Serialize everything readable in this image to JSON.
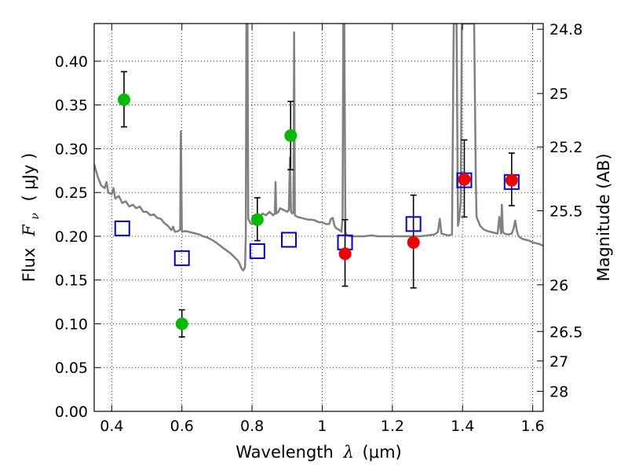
{
  "chart_data": {
    "type": "scatter",
    "xlabel": {
      "prefix": "Wavelength",
      "symbol": "λ",
      "unit": "(μm)"
    },
    "ylabel": {
      "prefix": "Flux",
      "symbol": "F",
      "sub": "ν",
      "unit": "( μJy )"
    },
    "ylabel_right": "Magnitude (AB)",
    "xlim": [
      0.35,
      1.63
    ],
    "ylim": [
      0.0,
      0.443
    ],
    "grid": true,
    "grid_style": "dotted",
    "xticks": [
      0.4,
      0.6,
      0.8,
      1.0,
      1.2,
      1.4,
      1.6
    ],
    "xtick_labels": [
      "0.4",
      "0.6",
      "0.8",
      "1",
      "1.2",
      "1.4",
      "1.6"
    ],
    "yticks": [
      0.0,
      0.05,
      0.1,
      0.15,
      0.2,
      0.25,
      0.3,
      0.35,
      0.4
    ],
    "ytick_labels": [
      "0.00",
      "0.05",
      "0.10",
      "0.15",
      "0.20",
      "0.25",
      "0.30",
      "0.35",
      "0.40"
    ],
    "right_ticks": [
      {
        "label": "24.8",
        "mag": 24.8
      },
      {
        "label": "25",
        "mag": 25.0
      },
      {
        "label": "25.2",
        "mag": 25.2
      },
      {
        "label": "25.5",
        "mag": 25.5
      },
      {
        "label": "26",
        "mag": 26.0
      },
      {
        "label": "26.5",
        "mag": 26.5
      },
      {
        "label": "27",
        "mag": 27.0
      },
      {
        "label": "28",
        "mag": 28.0
      }
    ],
    "series": [
      {
        "kind": "line",
        "color": "#808080",
        "points": [
          [
            0.35,
            0.282
          ],
          [
            0.36,
            0.268
          ],
          [
            0.37,
            0.258
          ],
          [
            0.38,
            0.255
          ],
          [
            0.385,
            0.262
          ],
          [
            0.39,
            0.25
          ],
          [
            0.4,
            0.248
          ],
          [
            0.405,
            0.255
          ],
          [
            0.41,
            0.243
          ],
          [
            0.42,
            0.246
          ],
          [
            0.43,
            0.238
          ],
          [
            0.44,
            0.24
          ],
          [
            0.45,
            0.234
          ],
          [
            0.46,
            0.236
          ],
          [
            0.47,
            0.232
          ],
          [
            0.48,
            0.234
          ],
          [
            0.49,
            0.228
          ],
          [
            0.5,
            0.228
          ],
          [
            0.51,
            0.224
          ],
          [
            0.52,
            0.225
          ],
          [
            0.53,
            0.221
          ],
          [
            0.54,
            0.22
          ],
          [
            0.55,
            0.215
          ],
          [
            0.56,
            0.212
          ],
          [
            0.57,
            0.207
          ],
          [
            0.575,
            0.211
          ],
          [
            0.58,
            0.205
          ],
          [
            0.59,
            0.206
          ],
          [
            0.595,
            0.208
          ],
          [
            0.597,
            0.32
          ],
          [
            0.6,
            0.205
          ],
          [
            0.61,
            0.206
          ],
          [
            0.62,
            0.205
          ],
          [
            0.63,
            0.204
          ],
          [
            0.64,
            0.203
          ],
          [
            0.65,
            0.202
          ],
          [
            0.66,
            0.2
          ],
          [
            0.67,
            0.199
          ],
          [
            0.68,
            0.197
          ],
          [
            0.69,
            0.195
          ],
          [
            0.7,
            0.192
          ],
          [
            0.71,
            0.189
          ],
          [
            0.72,
            0.186
          ],
          [
            0.73,
            0.183
          ],
          [
            0.74,
            0.18
          ],
          [
            0.75,
            0.176
          ],
          [
            0.76,
            0.172
          ],
          [
            0.765,
            0.168
          ],
          [
            0.77,
            0.163
          ],
          [
            0.775,
            0.161
          ],
          [
            0.78,
            0.165
          ],
          [
            0.782,
            0.2
          ],
          [
            0.784,
            0.443
          ],
          [
            0.787,
            0.443
          ],
          [
            0.789,
            0.22
          ],
          [
            0.795,
            0.215
          ],
          [
            0.8,
            0.214
          ],
          [
            0.81,
            0.218
          ],
          [
            0.82,
            0.222
          ],
          [
            0.83,
            0.226
          ],
          [
            0.84,
            0.224
          ],
          [
            0.85,
            0.228
          ],
          [
            0.86,
            0.224
          ],
          [
            0.865,
            0.226
          ],
          [
            0.867,
            0.262
          ],
          [
            0.869,
            0.226
          ],
          [
            0.875,
            0.228
          ],
          [
            0.88,
            0.232
          ],
          [
            0.89,
            0.23
          ],
          [
            0.9,
            0.228
          ],
          [
            0.905,
            0.23
          ],
          [
            0.908,
            0.29
          ],
          [
            0.911,
            0.228
          ],
          [
            0.915,
            0.226
          ],
          [
            0.918,
            0.228
          ],
          [
            0.92,
            0.433
          ],
          [
            0.922,
            0.224
          ],
          [
            0.93,
            0.222
          ],
          [
            0.94,
            0.221
          ],
          [
            0.95,
            0.22
          ],
          [
            0.96,
            0.219
          ],
          [
            0.97,
            0.219
          ],
          [
            0.98,
            0.218
          ],
          [
            0.99,
            0.216
          ],
          [
            1.0,
            0.216
          ],
          [
            1.01,
            0.214
          ],
          [
            1.02,
            0.214
          ],
          [
            1.025,
            0.22
          ],
          [
            1.03,
            0.221
          ],
          [
            1.035,
            0.212
          ],
          [
            1.04,
            0.209
          ],
          [
            1.05,
            0.207
          ],
          [
            1.055,
            0.205
          ],
          [
            1.058,
            0.222
          ],
          [
            1.06,
            0.443
          ],
          [
            1.063,
            0.443
          ],
          [
            1.066,
            0.205
          ],
          [
            1.07,
            0.201
          ],
          [
            1.08,
            0.2
          ],
          [
            1.1,
            0.2
          ],
          [
            1.12,
            0.2
          ],
          [
            1.14,
            0.201
          ],
          [
            1.16,
            0.2
          ],
          [
            1.18,
            0.2
          ],
          [
            1.2,
            0.2
          ],
          [
            1.22,
            0.2
          ],
          [
            1.24,
            0.2
          ],
          [
            1.26,
            0.2
          ],
          [
            1.28,
            0.2
          ],
          [
            1.3,
            0.201
          ],
          [
            1.32,
            0.202
          ],
          [
            1.33,
            0.205
          ],
          [
            1.335,
            0.22
          ],
          [
            1.34,
            0.203
          ],
          [
            1.36,
            0.201
          ],
          [
            1.37,
            0.202
          ],
          [
            1.375,
            0.443
          ],
          [
            1.383,
            0.443
          ],
          [
            1.387,
            0.212
          ],
          [
            1.39,
            0.218
          ],
          [
            1.395,
            0.24
          ],
          [
            1.398,
            0.443
          ],
          [
            1.405,
            0.443
          ],
          [
            1.408,
            0.443
          ],
          [
            1.415,
            0.443
          ],
          [
            1.418,
            0.443
          ],
          [
            1.423,
            0.443
          ],
          [
            1.426,
            0.443
          ],
          [
            1.43,
            0.443
          ],
          [
            1.433,
            0.443
          ],
          [
            1.438,
            0.26
          ],
          [
            1.44,
            0.222
          ],
          [
            1.45,
            0.212
          ],
          [
            1.46,
            0.208
          ],
          [
            1.47,
            0.206
          ],
          [
            1.48,
            0.205
          ],
          [
            1.49,
            0.204
          ],
          [
            1.5,
            0.203
          ],
          [
            1.505,
            0.222
          ],
          [
            1.51,
            0.203
          ],
          [
            1.512,
            0.236
          ],
          [
            1.515,
            0.205
          ],
          [
            1.52,
            0.203
          ],
          [
            1.53,
            0.202
          ],
          [
            1.54,
            0.203
          ],
          [
            1.545,
            0.208
          ],
          [
            1.55,
            0.218
          ],
          [
            1.555,
            0.206
          ],
          [
            1.56,
            0.2
          ],
          [
            1.57,
            0.197
          ],
          [
            1.58,
            0.196
          ],
          [
            1.59,
            0.195
          ],
          [
            1.6,
            0.193
          ],
          [
            1.61,
            0.192
          ],
          [
            1.62,
            0.191
          ],
          [
            1.63,
            0.189
          ]
        ]
      },
      {
        "kind": "points",
        "marker": "circle",
        "color": "#00bb00",
        "x": [
          0.435,
          0.6,
          0.815,
          0.91
        ],
        "y": [
          0.356,
          0.1,
          0.219,
          0.315
        ],
        "yerr_low": [
          0.325,
          0.085,
          0.195,
          0.276
        ],
        "yerr_high": [
          0.388,
          0.116,
          0.244,
          0.354
        ]
      },
      {
        "kind": "points",
        "marker": "circle",
        "color": "#ee0000",
        "x": [
          1.065,
          1.26,
          1.405,
          1.54
        ],
        "y": [
          0.18,
          0.193,
          0.265,
          0.264
        ],
        "yerr_low": [
          0.143,
          0.141,
          0.222,
          0.235
        ],
        "yerr_high": [
          0.219,
          0.247,
          0.31,
          0.295
        ]
      },
      {
        "kind": "points",
        "marker": "open-square",
        "color": "#0000cc",
        "x": [
          0.43,
          0.6,
          0.815,
          0.905,
          1.065,
          1.26,
          1.405,
          1.54
        ],
        "y": [
          0.209,
          0.175,
          0.183,
          0.196,
          0.193,
          0.214,
          0.264,
          0.262
        ]
      }
    ]
  }
}
